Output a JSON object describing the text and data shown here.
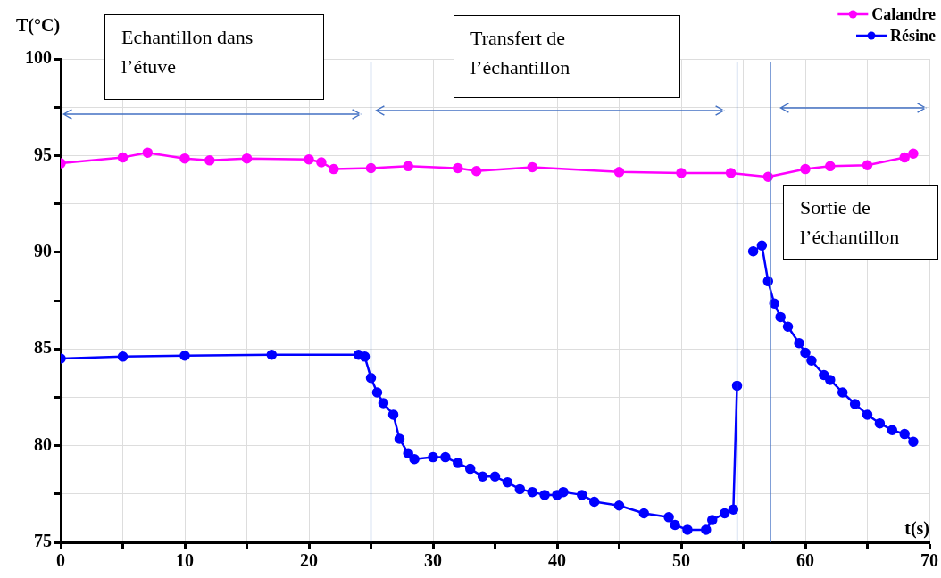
{
  "chart_data": {
    "type": "line",
    "xlabel": "t(s)",
    "ylabel": "T(°C)",
    "xlim": [
      0,
      70
    ],
    "xticks": [
      0,
      {
        "value": 5,
        "label": null
      },
      10,
      {
        "value": 15,
        "label": null
      },
      20,
      {
        "value": 25,
        "label": null
      },
      30,
      {
        "value": 35,
        "label": null
      },
      40,
      {
        "value": 45,
        "label": null
      },
      50,
      {
        "value": 55,
        "label": null
      },
      60,
      {
        "value": 65,
        "label": null
      },
      70
    ],
    "ylim": [
      75,
      100
    ],
    "yticks": [
      75,
      {
        "value": 77.5,
        "label": null
      },
      80,
      {
        "value": 82.5,
        "label": null
      },
      85,
      {
        "value": 87.5,
        "label": null
      },
      90,
      {
        "value": 92.5,
        "label": null
      },
      95,
      {
        "value": 97.5,
        "label": null
      },
      100
    ],
    "grid": true,
    "legend": "top right",
    "marker": "circle",
    "line_style": "solid",
    "series": [
      {
        "name": "Calandre",
        "color": "#ff00ff",
        "x": [
          0,
          5,
          7,
          10,
          12,
          15,
          20,
          21,
          22,
          25,
          28,
          32,
          33.5,
          38,
          45,
          50,
          54,
          57,
          60,
          62,
          65,
          68,
          68.7
        ],
        "values": [
          94.6,
          94.9,
          95.15,
          94.85,
          94.75,
          94.85,
          94.8,
          94.65,
          94.3,
          94.35,
          94.45,
          94.35,
          94.2,
          94.4,
          94.15,
          94.1,
          94.1,
          93.9,
          94.3,
          94.45,
          94.5,
          94.9,
          95.1
        ]
      },
      {
        "name": "Résine",
        "color": "#0000ff",
        "x": [
          0,
          5,
          10,
          17,
          24,
          24.5,
          25,
          25.5,
          26,
          26.8,
          27.3,
          28,
          28.5,
          30,
          31,
          32,
          33,
          34,
          35,
          36,
          37,
          38,
          39,
          40,
          40.5,
          42,
          43,
          45,
          47,
          49,
          49.5,
          50.5,
          52,
          52.5,
          53.5,
          54.2,
          54.5,
          55.2,
          55.8,
          56.5,
          57,
          57.5,
          58,
          58.6,
          59.5,
          60,
          60.5,
          61.5,
          62,
          63,
          64,
          65,
          66,
          67,
          68,
          68.7
        ],
        "values": [
          84.5,
          84.6,
          84.65,
          84.7,
          84.7,
          84.6,
          83.5,
          82.75,
          82.2,
          81.6,
          80.35,
          79.6,
          79.3,
          79.4,
          79.4,
          79.1,
          78.8,
          78.4,
          78.4,
          78.1,
          77.75,
          77.6,
          77.45,
          77.45,
          77.6,
          77.45,
          77.1,
          76.9,
          76.5,
          76.3,
          75.9,
          75.65,
          75.65,
          76.15,
          76.5,
          76.7,
          83.1,
          null,
          90.05,
          90.35,
          88.5,
          87.35,
          86.65,
          86.15,
          85.3,
          84.8,
          84.4,
          83.65,
          83.4,
          82.75,
          82.15,
          81.6,
          81.15,
          80.8,
          80.6,
          80.2
        ]
      }
    ],
    "ref_lines": [
      {
        "axis": "x",
        "value": 25,
        "color": "#4472c4"
      },
      {
        "axis": "x",
        "value": 54.5,
        "color": "#4472c4"
      },
      {
        "axis": "x",
        "value": 57.2,
        "color": "#4472c4"
      }
    ],
    "annotations": [
      "Echantillon dans l’étuve",
      "Transfert de l’échantillon",
      "Sortie de l’échantillon"
    ]
  }
}
